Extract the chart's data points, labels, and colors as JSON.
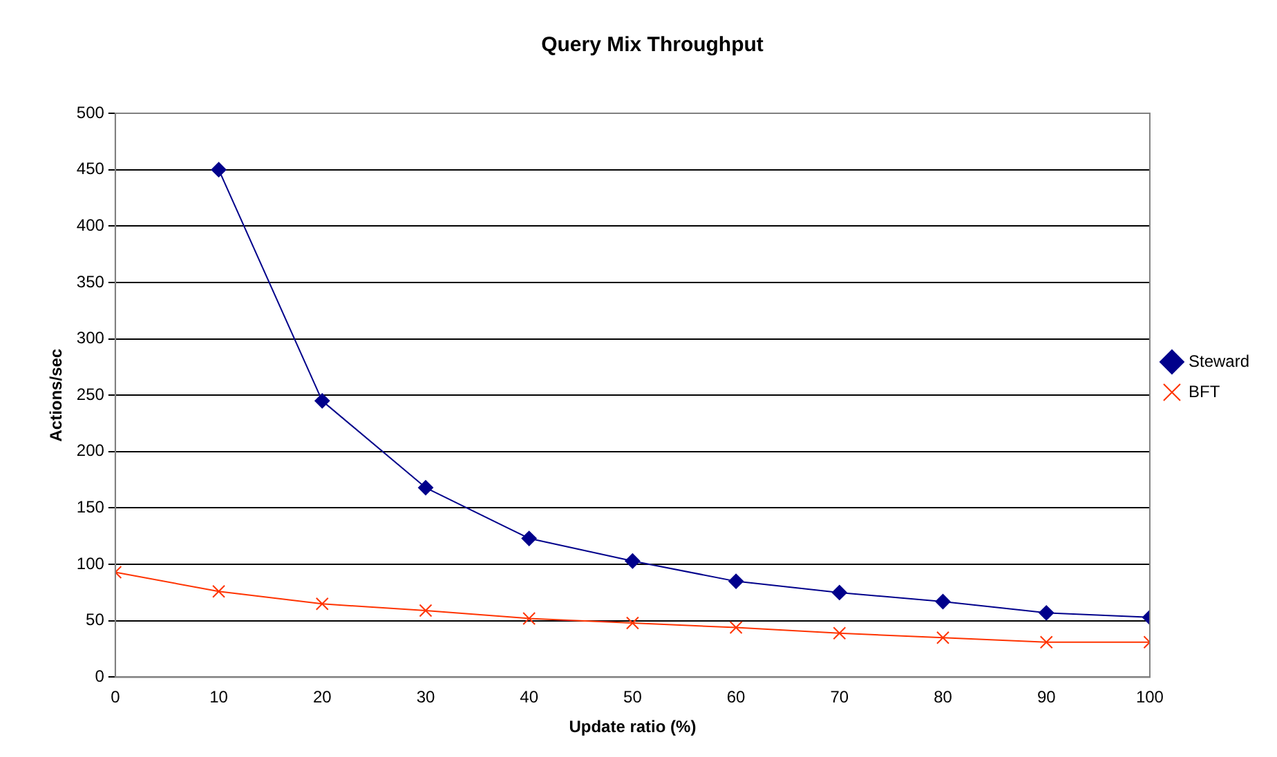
{
  "chart_data": {
    "type": "line",
    "title": "Query Mix Throughput",
    "xlabel": "Update ratio (%)",
    "ylabel": "Actions/sec",
    "x": [
      0,
      10,
      20,
      30,
      40,
      50,
      60,
      70,
      80,
      90,
      100
    ],
    "series": [
      {
        "name": "Steward",
        "color": "#00008b",
        "marker": "diamond",
        "values": [
          null,
          450,
          245,
          168,
          123,
          103,
          85,
          75,
          67,
          57,
          53
        ]
      },
      {
        "name": "BFT",
        "color": "#ff3300",
        "marker": "cross",
        "values": [
          93,
          76,
          65,
          59,
          52,
          48,
          44,
          39,
          35,
          31,
          31
        ]
      }
    ],
    "xlim": [
      0,
      100
    ],
    "xticks": [
      0,
      10,
      20,
      30,
      40,
      50,
      60,
      70,
      80,
      90,
      100
    ],
    "ylim": [
      0,
      500
    ],
    "yticks": [
      0,
      50,
      100,
      150,
      200,
      250,
      300,
      350,
      400,
      450,
      500
    ],
    "grid": "y",
    "legend": "right",
    "line_style": "solid"
  }
}
